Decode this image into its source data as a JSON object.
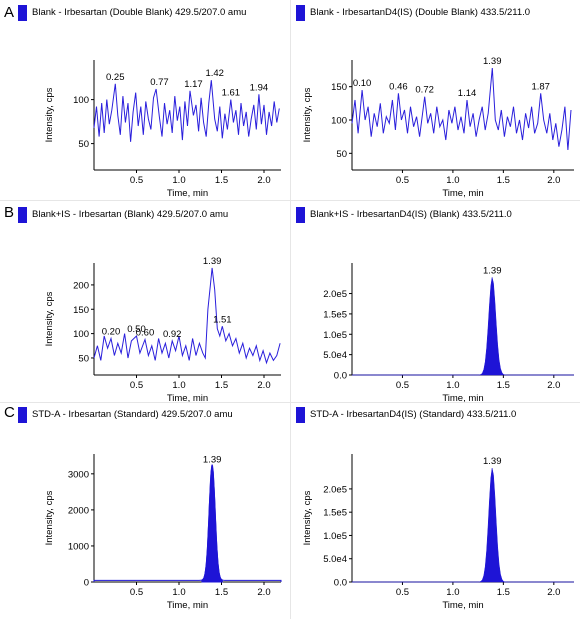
{
  "panel_letters": [
    "A",
    "B",
    "C"
  ],
  "chart_data": [
    {
      "type": "line",
      "title": "Blank - Irbesartan (Double Blank) 429.5/207.0 amu",
      "xlabel": "Time, min",
      "ylabel": "Intensity, cps",
      "xlim": [
        0.0,
        2.2
      ],
      "ylim": [
        20,
        145
      ],
      "xticks": [
        "0.5",
        "1.0",
        "1.5",
        "2.0"
      ],
      "yticks": [
        "50",
        "100"
      ],
      "line_color": "#2a1fdc",
      "x": [
        0.0,
        0.03,
        0.06,
        0.09,
        0.12,
        0.15,
        0.18,
        0.21,
        0.25,
        0.28,
        0.31,
        0.34,
        0.37,
        0.4,
        0.43,
        0.46,
        0.49,
        0.52,
        0.55,
        0.58,
        0.61,
        0.64,
        0.67,
        0.7,
        0.73,
        0.77,
        0.8,
        0.83,
        0.86,
        0.89,
        0.92,
        0.95,
        0.98,
        1.01,
        1.04,
        1.07,
        1.1,
        1.13,
        1.17,
        1.2,
        1.23,
        1.26,
        1.29,
        1.32,
        1.35,
        1.38,
        1.42,
        1.45,
        1.48,
        1.51,
        1.54,
        1.57,
        1.61,
        1.64,
        1.67,
        1.7,
        1.73,
        1.76,
        1.79,
        1.82,
        1.85,
        1.88,
        1.91,
        1.94,
        1.97,
        2.0,
        2.03,
        2.06,
        2.09,
        2.12,
        2.15,
        2.18
      ],
      "y": [
        68,
        92,
        58,
        96,
        62,
        100,
        72,
        88,
        118,
        82,
        60,
        104,
        74,
        96,
        52,
        86,
        108,
        70,
        92,
        60,
        98,
        78,
        66,
        102,
        112,
        80,
        58,
        96,
        72,
        88,
        62,
        104,
        76,
        92,
        54,
        98,
        70,
        110,
        82,
        94,
        64,
        102,
        74,
        58,
        96,
        122,
        78,
        64,
        92,
        56,
        84,
        66,
        100,
        74,
        88,
        60,
        96,
        70,
        86,
        58,
        78,
        94,
        66,
        106,
        72,
        94,
        60,
        86,
        70,
        98,
        74,
        90
      ],
      "point_labels": [
        {
          "x": 0.25,
          "y": 118,
          "text": "0.25"
        },
        {
          "x": 0.77,
          "y": 112,
          "text": "0.77"
        },
        {
          "x": 1.17,
          "y": 110,
          "text": "1.17"
        },
        {
          "x": 1.42,
          "y": 122,
          "text": "1.42"
        },
        {
          "x": 1.61,
          "y": 100,
          "text": "1.61"
        },
        {
          "x": 1.94,
          "y": 106,
          "text": "1.94"
        }
      ]
    },
    {
      "type": "line",
      "title": "Blank - IrbesartanD4(IS) (Double Blank) 433.5/211.0",
      "xlabel": "Time, min",
      "ylabel": "Intensity, cps",
      "xlim": [
        0.0,
        2.2
      ],
      "ylim": [
        25,
        190
      ],
      "xticks": [
        "0.5",
        "1.0",
        "1.5",
        "2.0"
      ],
      "yticks": [
        "50",
        "100",
        "150"
      ],
      "line_color": "#2a1fdc",
      "x": [
        0.0,
        0.03,
        0.06,
        0.1,
        0.13,
        0.16,
        0.19,
        0.22,
        0.25,
        0.28,
        0.31,
        0.34,
        0.37,
        0.4,
        0.43,
        0.46,
        0.49,
        0.52,
        0.55,
        0.58,
        0.61,
        0.64,
        0.67,
        0.72,
        0.75,
        0.78,
        0.81,
        0.84,
        0.87,
        0.9,
        0.93,
        0.96,
        0.99,
        1.02,
        1.05,
        1.08,
        1.11,
        1.14,
        1.17,
        1.2,
        1.23,
        1.26,
        1.29,
        1.32,
        1.35,
        1.39,
        1.42,
        1.45,
        1.48,
        1.51,
        1.54,
        1.57,
        1.6,
        1.63,
        1.66,
        1.69,
        1.72,
        1.75,
        1.78,
        1.81,
        1.84,
        1.87,
        1.9,
        1.93,
        1.96,
        1.99,
        2.02,
        2.05,
        2.08,
        2.11,
        2.14,
        2.17
      ],
      "y": [
        95,
        130,
        80,
        145,
        100,
        120,
        75,
        110,
        90,
        125,
        80,
        105,
        95,
        130,
        85,
        140,
        100,
        115,
        80,
        120,
        90,
        105,
        75,
        135,
        95,
        110,
        80,
        120,
        90,
        100,
        70,
        115,
        95,
        120,
        85,
        105,
        80,
        130,
        90,
        110,
        75,
        100,
        120,
        85,
        110,
        178,
        100,
        85,
        115,
        75,
        105,
        90,
        120,
        80,
        100,
        70,
        110,
        88,
        120,
        80,
        95,
        140,
        100,
        80,
        110,
        70,
        95,
        60,
        85,
        120,
        55,
        115
      ],
      "point_labels": [
        {
          "x": 0.1,
          "y": 145,
          "text": "0.10"
        },
        {
          "x": 0.46,
          "y": 140,
          "text": "0.46"
        },
        {
          "x": 0.72,
          "y": 135,
          "text": "0.72"
        },
        {
          "x": 1.14,
          "y": 130,
          "text": "1.14"
        },
        {
          "x": 1.39,
          "y": 178,
          "text": "1.39"
        },
        {
          "x": 1.87,
          "y": 140,
          "text": "1.87"
        }
      ]
    },
    {
      "type": "line",
      "title": "Blank+IS - Irbesartan (Blank) 429.5/207.0 amu",
      "xlabel": "Time, min",
      "ylabel": "Intensity, cps",
      "xlim": [
        0.0,
        2.2
      ],
      "ylim": [
        15,
        245
      ],
      "xticks": [
        "0.5",
        "1.0",
        "1.5",
        "2.0"
      ],
      "yticks": [
        "50",
        "100",
        "150",
        "200"
      ],
      "line_color": "#2a1fdc",
      "x": [
        0.0,
        0.04,
        0.08,
        0.12,
        0.16,
        0.2,
        0.24,
        0.28,
        0.32,
        0.36,
        0.4,
        0.44,
        0.5,
        0.54,
        0.6,
        0.64,
        0.68,
        0.72,
        0.76,
        0.8,
        0.84,
        0.88,
        0.92,
        0.96,
        1.0,
        1.04,
        1.08,
        1.12,
        1.16,
        1.2,
        1.24,
        1.28,
        1.31,
        1.34,
        1.37,
        1.39,
        1.42,
        1.45,
        1.48,
        1.51,
        1.55,
        1.59,
        1.63,
        1.67,
        1.71,
        1.75,
        1.79,
        1.83,
        1.87,
        1.91,
        1.95,
        1.99,
        2.03,
        2.07,
        2.11,
        2.15,
        2.19
      ],
      "y": [
        50,
        75,
        45,
        95,
        70,
        90,
        55,
        80,
        60,
        100,
        50,
        85,
        95,
        60,
        88,
        55,
        75,
        45,
        90,
        60,
        80,
        50,
        85,
        65,
        95,
        55,
        75,
        45,
        90,
        55,
        80,
        60,
        50,
        150,
        200,
        235,
        190,
        110,
        95,
        115,
        85,
        100,
        75,
        90,
        60,
        80,
        50,
        70,
        55,
        75,
        45,
        65,
        40,
        60,
        45,
        55,
        80
      ],
      "point_labels": [
        {
          "x": 0.2,
          "y": 90,
          "text": "0.20"
        },
        {
          "x": 0.5,
          "y": 95,
          "text": "0.50"
        },
        {
          "x": 0.6,
          "y": 88,
          "text": "0.60"
        },
        {
          "x": 0.92,
          "y": 85,
          "text": "0.92"
        },
        {
          "x": 1.39,
          "y": 235,
          "text": "1.39"
        },
        {
          "x": 1.51,
          "y": 115,
          "text": "1.51"
        }
      ]
    },
    {
      "type": "area",
      "title": "Blank+IS - IrbesartanD4(IS) (Blank) 433.5/211.0",
      "xlabel": "Time, min",
      "ylabel": "",
      "xlim": [
        0.0,
        2.2
      ],
      "ylim": [
        0,
        275000
      ],
      "xticks": [
        "0.5",
        "1.0",
        "1.5",
        "2.0"
      ],
      "yticks": [
        "0.0",
        "5.0e4",
        "1.0e5",
        "1.5e5",
        "2.0e5"
      ],
      "fill_color": "#1e14d6",
      "peak": {
        "center": 1.39,
        "height": 240000,
        "sigma": 0.035
      },
      "point_labels": [
        {
          "x": 1.39,
          "y": 240000,
          "text": "1.39"
        }
      ]
    },
    {
      "type": "area",
      "title": "STD-A - Irbesartan (Standard) 429.5/207.0 amu",
      "xlabel": "Time, min",
      "ylabel": "Intensity, cps",
      "xlim": [
        0.0,
        2.2
      ],
      "ylim": [
        0,
        3550
      ],
      "xticks": [
        "0.5",
        "1.0",
        "1.5",
        "2.0"
      ],
      "yticks": [
        "0",
        "1000",
        "2000",
        "3000"
      ],
      "fill_color": "#1e14d6",
      "baseline": 45,
      "peak": {
        "center": 1.39,
        "height": 3200,
        "sigma": 0.035
      },
      "point_labels": [
        {
          "x": 1.39,
          "y": 3200,
          "text": "1.39"
        }
      ]
    },
    {
      "type": "area",
      "title": "STD-A - IrbesartanD4(IS) (Standard) 433.5/211.0",
      "xlabel": "Time, min",
      "ylabel": "Intensity, cps",
      "xlim": [
        0.0,
        2.2
      ],
      "ylim": [
        0,
        275000
      ],
      "xticks": [
        "0.5",
        "1.0",
        "1.5",
        "2.0"
      ],
      "yticks": [
        "0.0",
        "5.0e4",
        "1.0e5",
        "1.5e5",
        "2.0e5"
      ],
      "fill_color": "#1e14d6",
      "peak": {
        "center": 1.39,
        "height": 245000,
        "sigma": 0.035
      },
      "point_labels": [
        {
          "x": 1.39,
          "y": 245000,
          "text": "1.39"
        }
      ]
    }
  ]
}
